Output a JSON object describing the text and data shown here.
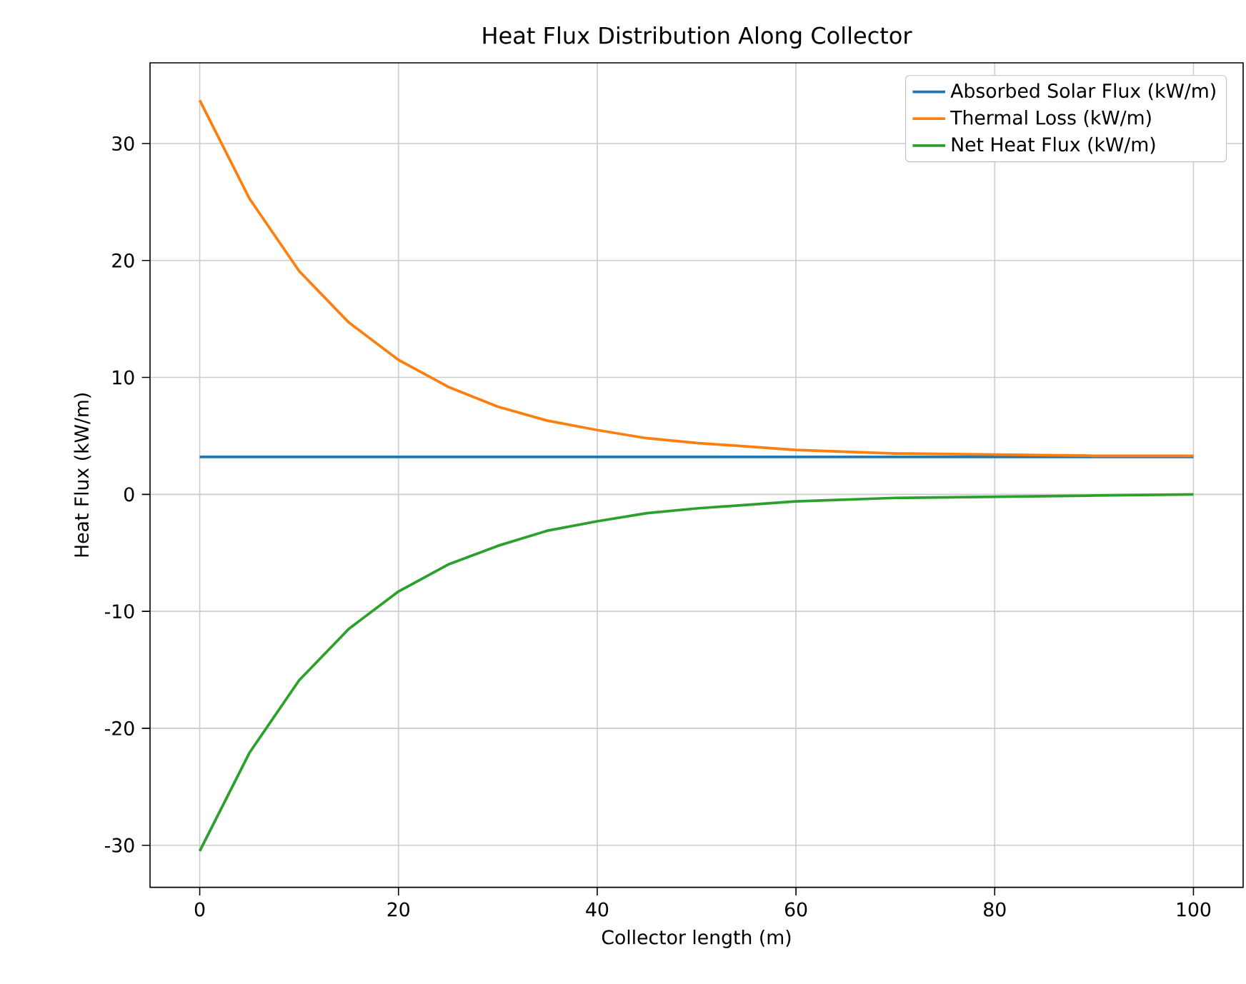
{
  "chart_data": {
    "type": "line",
    "title": "Heat Flux Distribution Along Collector",
    "xlabel": "Collector length (m)",
    "ylabel": "Heat Flux (kW/m)",
    "x": [
      0,
      5,
      10,
      15,
      20,
      25,
      30,
      35,
      40,
      45,
      50,
      60,
      70,
      80,
      90,
      100
    ],
    "series": [
      {
        "name": "Absorbed Solar Flux (kW/m)",
        "color": "#1f77b4",
        "values": [
          3.2,
          3.2,
          3.2,
          3.2,
          3.2,
          3.2,
          3.2,
          3.2,
          3.2,
          3.2,
          3.2,
          3.2,
          3.2,
          3.2,
          3.2,
          3.2
        ]
      },
      {
        "name": "Thermal Loss (kW/m)",
        "color": "#ff7f0e",
        "values": [
          33.7,
          25.3,
          19.1,
          14.7,
          11.5,
          9.2,
          7.5,
          6.3,
          5.5,
          4.8,
          4.4,
          3.8,
          3.5,
          3.4,
          3.3,
          3.3
        ]
      },
      {
        "name": "Net Heat Flux (kW/m)",
        "color": "#2ca02c",
        "values": [
          -30.5,
          -22.1,
          -15.9,
          -11.5,
          -8.3,
          -6.0,
          -4.4,
          -3.1,
          -2.3,
          -1.6,
          -1.2,
          -0.6,
          -0.3,
          -0.2,
          -0.1,
          0.0
        ]
      }
    ],
    "xlim": [
      -5,
      105
    ],
    "ylim": [
      -33.6,
      36.9
    ],
    "xticks": [
      0,
      20,
      40,
      60,
      80,
      100
    ],
    "yticks": [
      -30,
      -20,
      -10,
      0,
      10,
      20,
      30
    ],
    "grid": true,
    "legend": "top right",
    "line_style": "solid"
  }
}
